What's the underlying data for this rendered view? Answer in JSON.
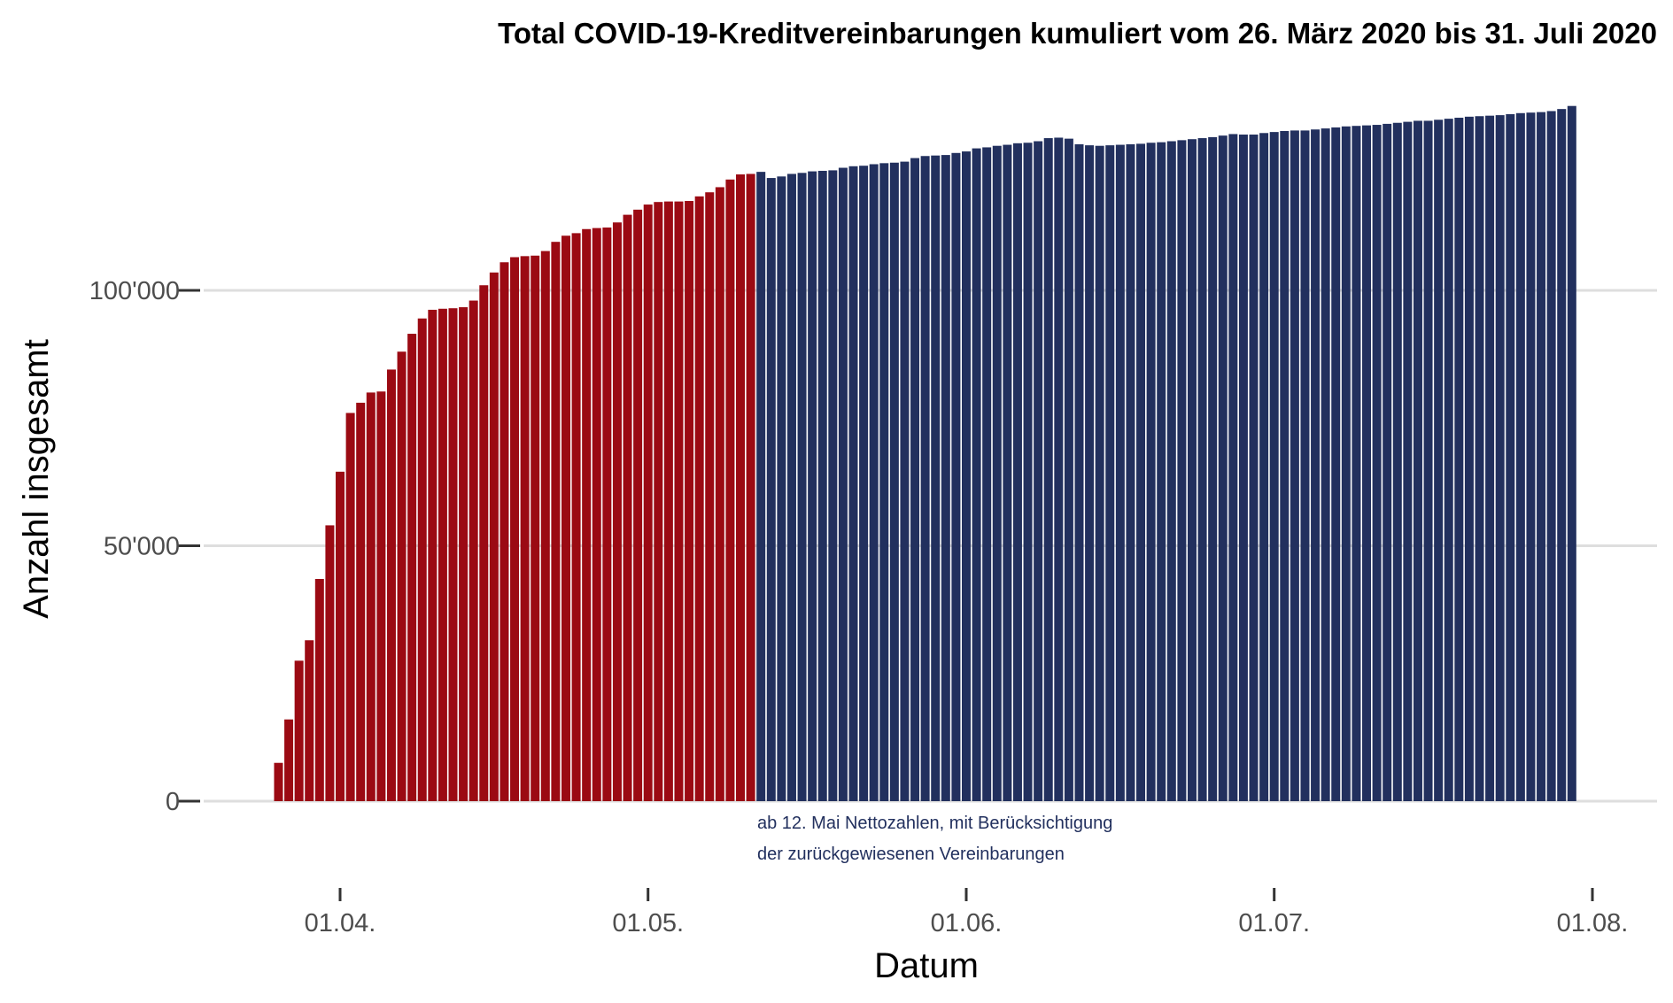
{
  "chart_data": {
    "type": "bar",
    "title": "Total COVID-19-Kreditvereinbarungen kumuliert vom 26. März 2020 bis 31. Juli 2020",
    "xlabel": "Datum",
    "ylabel": "Anzahl insgesamt",
    "x_start": "2020-03-26",
    "x_end": "2020-07-31",
    "x_ticks": [
      {
        "date": "2020-04-01",
        "label": "01.04."
      },
      {
        "date": "2020-05-01",
        "label": "01.05."
      },
      {
        "date": "2020-06-01",
        "label": "01.06."
      },
      {
        "date": "2020-07-01",
        "label": "01.07."
      },
      {
        "date": "2020-08-01",
        "label": "01.08."
      }
    ],
    "y_ticks": [
      {
        "value": 0,
        "label": "0"
      },
      {
        "value": 50000,
        "label": "50'000"
      },
      {
        "value": 100000,
        "label": "100'000"
      }
    ],
    "ylim": [
      0,
      140000
    ],
    "grid": "horizontal",
    "legend": "none",
    "series_colors": {
      "before": "#9b0a13",
      "after": "#22305e"
    },
    "split_date": "2020-05-12",
    "annotation": {
      "lines": [
        "ab 12. Mai Nettozahlen, mit Berücksichtigung",
        "der zurückgewiesenen Vereinbarungen"
      ],
      "color": "#22305e"
    },
    "values": [
      7500,
      16000,
      27500,
      31500,
      43500,
      54000,
      64500,
      76000,
      78000,
      80000,
      80200,
      84500,
      88000,
      91500,
      94500,
      96200,
      96400,
      96500,
      96700,
      98000,
      101000,
      103500,
      105500,
      106500,
      106700,
      106800,
      107700,
      109500,
      110700,
      111200,
      112000,
      112200,
      112300,
      113300,
      114800,
      115800,
      116800,
      117300,
      117400,
      117400,
      117500,
      118400,
      119200,
      120200,
      121700,
      122700,
      122800,
      123200,
      122000,
      122300,
      122800,
      123000,
      123300,
      123400,
      123500,
      124000,
      124300,
      124400,
      124700,
      124900,
      125000,
      125200,
      125900,
      126300,
      126400,
      126500,
      126900,
      127200,
      127800,
      128000,
      128300,
      128500,
      128800,
      128900,
      129200,
      129800,
      129900,
      129700,
      128600,
      128400,
      128300,
      128400,
      128500,
      128600,
      128700,
      128900,
      129000,
      129200,
      129400,
      129600,
      129800,
      130000,
      130300,
      130600,
      130500,
      130500,
      130800,
      131000,
      131200,
      131300,
      131300,
      131500,
      131700,
      131900,
      132100,
      132200,
      132300,
      132400,
      132600,
      132800,
      133000,
      133200,
      133200,
      133400,
      133600,
      133800,
      134000,
      134100,
      134200,
      134300,
      134500,
      134700,
      134800,
      134900,
      135100,
      135500,
      136100
    ]
  }
}
